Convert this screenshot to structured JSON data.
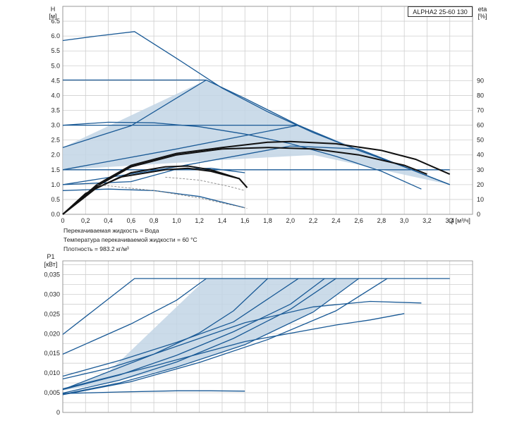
{
  "model": "ALPHA2 25-60 130",
  "conditions": [
    "Перекачиваемая жидкость = Вода",
    "Температура перекачиваемой жидкости = 60 °C",
    "Плотность = 983.2 кг/м³"
  ],
  "colors": {
    "curve": "#1a5a96",
    "fill": "#c2d5e5",
    "eta": "#111111",
    "eta_dashed": "#888888",
    "grid": "#cfcfcf"
  },
  "chart_data": [
    {
      "type": "line",
      "axis_labels": {
        "y_name": "H",
        "y_unit": "[м]",
        "eta_name": "eta",
        "eta_unit": "[%]",
        "x": "Q [м³/ч]"
      },
      "xlim": [
        0,
        3.6
      ],
      "ylim": [
        0,
        7.0
      ],
      "eta_lim": [
        0,
        140
      ],
      "x_ticks": [
        "0",
        "0,2",
        "0,4",
        "0,6",
        "0,8",
        "1,0",
        "1,2",
        "1,4",
        "1,6",
        "1,8",
        "2,0",
        "2,2",
        "2,4",
        "2,6",
        "2,8",
        "3,0",
        "3,2",
        "3,4"
      ],
      "y_ticks": [
        "0.0",
        "0.5",
        "1.0",
        "1.5",
        "2.0",
        "2.5",
        "3.0",
        "3.5",
        "4.0",
        "4.5",
        "5.0",
        "5.5",
        "6.0",
        "6.5"
      ],
      "eta_ticks": [
        "0",
        "10",
        "20",
        "30",
        "40",
        "50",
        "60",
        "70",
        "80",
        "90"
      ],
      "grid": true,
      "shaded_region": [
        [
          0,
          2.25
        ],
        [
          1.26,
          4.52
        ],
        [
          2.07,
          3.0
        ],
        [
          3.4,
          1.0
        ],
        [
          2.2,
          2.0
        ],
        [
          1.5,
          1.85
        ],
        [
          0,
          1.5
        ]
      ],
      "series": [
        {
          "values": [
            [
              0,
              5.85
            ],
            [
              0.3,
              6.0
            ],
            [
              0.63,
              6.15
            ],
            [
              1.0,
              5.25
            ],
            [
              1.4,
              4.25
            ],
            [
              1.8,
              3.45
            ],
            [
              2.2,
              2.75
            ],
            [
              2.6,
              2.15
            ],
            [
              3.0,
              1.6
            ],
            [
              3.4,
              1.0
            ]
          ]
        },
        {
          "values": [
            [
              0,
              4.52
            ],
            [
              1.26,
              4.52
            ],
            [
              1.6,
              3.9
            ],
            [
              2.07,
              3.0
            ],
            [
              2.5,
              2.3
            ],
            [
              3.0,
              1.6
            ],
            [
              3.4,
              1.0
            ]
          ]
        },
        {
          "values": [
            [
              0,
              3.0
            ],
            [
              0.4,
              3.1
            ],
            [
              0.8,
              3.08
            ],
            [
              1.2,
              2.95
            ],
            [
              1.6,
              2.7
            ],
            [
              2.0,
              2.38
            ],
            [
              2.4,
              1.95
            ],
            [
              2.8,
              1.45
            ],
            [
              3.15,
              0.85
            ]
          ]
        },
        {
          "values": [
            [
              0,
              3.0
            ],
            [
              1.0,
              3.0
            ],
            [
              2.07,
              3.0
            ]
          ]
        },
        {
          "values": [
            [
              0,
              2.25
            ],
            [
              0.6,
              2.98
            ],
            [
              1.26,
              4.52
            ]
          ]
        },
        {
          "values": [
            [
              0,
              1.5
            ],
            [
              1.0,
              2.2
            ],
            [
              2.07,
              3.0
            ]
          ]
        },
        {
          "values": [
            [
              0,
              1.5
            ],
            [
              1.0,
              1.5
            ],
            [
              2.0,
              1.5
            ],
            [
              3.4,
              1.5
            ]
          ]
        },
        {
          "values": [
            [
              0,
              1.0
            ],
            [
              1.0,
              1.6
            ],
            [
              2.0,
              2.3
            ],
            [
              2.6,
              2.2
            ],
            [
              3.4,
              1.0
            ]
          ]
        },
        {
          "values": [
            [
              0,
              1.0
            ],
            [
              0.6,
              1.1
            ],
            [
              1.0,
              1.52
            ],
            [
              1.3,
              1.55
            ],
            [
              1.6,
              1.4
            ]
          ]
        },
        {
          "values": [
            [
              0,
              0.8
            ],
            [
              0.4,
              0.85
            ],
            [
              0.8,
              0.8
            ],
            [
              1.2,
              0.6
            ],
            [
              1.6,
              0.22
            ]
          ]
        }
      ],
      "eta_series": [
        {
          "values": [
            [
              0,
              0
            ],
            [
              0.3,
              20
            ],
            [
              0.6,
              33
            ],
            [
              1.0,
              41
            ],
            [
              1.4,
              45
            ],
            [
              1.8,
              48.5
            ],
            [
              2.0,
              49
            ],
            [
              2.4,
              47.5
            ],
            [
              2.8,
              43
            ],
            [
              3.1,
              37
            ],
            [
              3.4,
              27
            ]
          ]
        },
        {
          "values": [
            [
              0,
              0
            ],
            [
              0.3,
              19
            ],
            [
              0.6,
              32
            ],
            [
              1.0,
              40
            ],
            [
              1.4,
              44
            ],
            [
              1.8,
              45
            ],
            [
              2.2,
              44
            ],
            [
              2.6,
              40
            ],
            [
              3.0,
              33
            ],
            [
              3.2,
              27
            ]
          ]
        },
        {
          "values": [
            [
              0,
              0
            ],
            [
              0.3,
              18
            ],
            [
              0.6,
              28
            ],
            [
              0.9,
              32
            ],
            [
              1.1,
              32.5
            ],
            [
              1.3,
              30
            ],
            [
              1.55,
              24
            ],
            [
              1.62,
              18
            ]
          ]
        },
        {
          "values": [
            [
              0,
              0
            ],
            [
              0.2,
              14
            ],
            [
              0.5,
              25
            ],
            [
              0.9,
              30
            ],
            [
              1.1,
              31
            ],
            [
              1.3,
              29
            ],
            [
              1.55,
              24
            ],
            [
              1.62,
              18
            ]
          ]
        },
        {
          "values": [
            [
              0.3,
              20
            ],
            [
              0.8,
              16
            ],
            [
              1.2,
              11
            ],
            [
              1.62,
              4
            ]
          ],
          "dashed": true
        },
        {
          "values": [
            [
              0.9,
              25
            ],
            [
              1.2,
              23
            ],
            [
              1.45,
              19
            ],
            [
              1.6,
              16
            ]
          ],
          "dashed": true
        }
      ]
    },
    {
      "type": "line",
      "axis_labels": {
        "y_name": "P1",
        "y_unit": "[кВт]"
      },
      "xlim": [
        0,
        3.6
      ],
      "ylim": [
        0,
        0.0385
      ],
      "y_ticks": [
        "0",
        "0,005",
        "0,010",
        "0,015",
        "0,020",
        "0,025",
        "0,030",
        "0,035"
      ],
      "grid": true,
      "shaded_region": [
        [
          0,
          0.0056
        ],
        [
          0.4,
          0.0102
        ],
        [
          1.26,
          0.034
        ],
        [
          2.6,
          0.034
        ],
        [
          2.2,
          0.0255
        ],
        [
          1.6,
          0.0172
        ],
        [
          1.0,
          0.0115
        ],
        [
          0.4,
          0.0075
        ],
        [
          0,
          0.0056
        ]
      ],
      "series": [
        {
          "values": [
            [
              0,
              0.0198
            ],
            [
              0.63,
              0.034
            ],
            [
              3.4,
              0.034
            ]
          ]
        },
        {
          "values": [
            [
              0,
              0.0148
            ],
            [
              0.6,
              0.0225
            ],
            [
              1.0,
              0.0285
            ],
            [
              1.26,
              0.034
            ]
          ]
        },
        {
          "values": [
            [
              0,
              0.0092
            ],
            [
              0.5,
              0.0132
            ],
            [
              1.0,
              0.0178
            ],
            [
              1.5,
              0.023
            ],
            [
              2.07,
              0.034
            ]
          ]
        },
        {
          "values": [
            [
              0,
              0.0085
            ],
            [
              0.4,
              0.0112
            ],
            [
              0.8,
              0.0148
            ],
            [
              1.2,
              0.0202
            ],
            [
              1.5,
              0.0258
            ],
            [
              1.8,
              0.034
            ]
          ]
        },
        {
          "values": [
            [
              0,
              0.0058
            ],
            [
              0.5,
              0.0095
            ],
            [
              1.0,
              0.0145
            ],
            [
              1.5,
              0.0205
            ],
            [
              2.0,
              0.0275
            ],
            [
              2.3,
              0.034
            ]
          ]
        },
        {
          "values": [
            [
              0,
              0.0049
            ],
            [
              0.5,
              0.0082
            ],
            [
              1.0,
              0.0128
            ],
            [
              1.5,
              0.0188
            ],
            [
              2.0,
              0.0262
            ],
            [
              2.4,
              0.034
            ]
          ]
        },
        {
          "values": [
            [
              0,
              0.0046
            ],
            [
              0.5,
              0.0075
            ],
            [
              1.0,
              0.0115
            ],
            [
              1.6,
              0.0172
            ],
            [
              2.2,
              0.0255
            ],
            [
              2.6,
              0.034
            ]
          ]
        },
        {
          "values": [
            [
              0,
              0.0045
            ],
            [
              0.6,
              0.0078
            ],
            [
              1.2,
              0.0127
            ],
            [
              1.8,
              0.0185
            ],
            [
              2.4,
              0.0258
            ],
            [
              2.85,
              0.034
            ]
          ]
        },
        {
          "values": [
            [
              0,
              0.006
            ],
            [
              0.8,
              0.0118
            ],
            [
              1.6,
              0.018
            ],
            [
              2.4,
              0.0222
            ],
            [
              2.7,
              0.0235
            ],
            [
              3.0,
              0.0251
            ]
          ]
        },
        {
          "values": [
            [
              0,
              0.0058
            ],
            [
              0.8,
              0.0148
            ],
            [
              1.6,
              0.0228
            ],
            [
              2.2,
              0.0268
            ],
            [
              2.7,
              0.0282
            ],
            [
              3.15,
              0.0278
            ]
          ]
        },
        {
          "values": [
            [
              0,
              0.0048
            ],
            [
              0.5,
              0.0052
            ],
            [
              1.0,
              0.0055
            ],
            [
              1.3,
              0.0055
            ],
            [
              1.6,
              0.0054
            ]
          ]
        }
      ]
    }
  ]
}
